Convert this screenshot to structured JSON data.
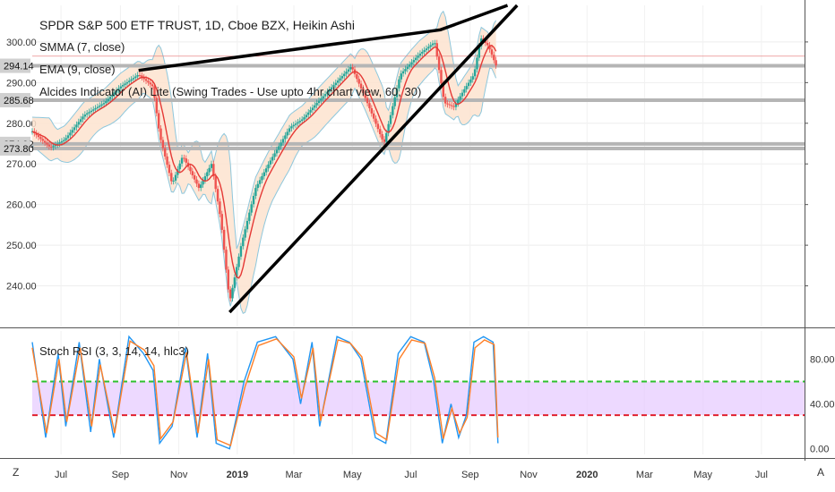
{
  "header": {
    "title": "SPDR S&P 500 ETF TRUST, 1D, Cboe BZX, Heikin Ashi",
    "indicators": [
      "SMMA (7, close)",
      "EMA (9, close)",
      "Alcides Indicator (AI) Lite (Swing Trades - Use upto 4hr chart view, 60, 30)"
    ]
  },
  "lower_pane": {
    "title": "Stoch RSI (3, 3, 14, 14, hlc3)"
  },
  "bottom_bar": {
    "left_button": "Z",
    "right_button": "A"
  },
  "colors": {
    "up_candle": "#26a69a",
    "down_candle": "#ef5350",
    "smma": "#e53935",
    "band_fill": "#fde3cf",
    "band_line": "#8ec7dc",
    "trendline": "#000000",
    "level_line": "#b5b5b5",
    "k_line": "#2196f3",
    "d_line": "#ff7f27",
    "rsi_band": "#e5c9ff",
    "overbought": "#2ec12e",
    "oversold": "#e0202e"
  },
  "chart_data": [
    {
      "type": "candlestick",
      "title": "SPDR S&P 500 ETF TRUST, 1D, Cboe BZX, Heikin Ashi",
      "y_ticks": [
        240,
        250,
        260,
        270,
        280,
        290,
        300
      ],
      "y_tick_labels": [
        "240.00",
        "250.00",
        "260.00",
        "270.00",
        "280.00",
        "290.00",
        "300.00"
      ],
      "ylim": [
        230,
        309
      ],
      "x_tick_labels": [
        "Jul",
        "Sep",
        "Nov",
        "2019",
        "Mar",
        "May",
        "Jul",
        "Sep",
        "Nov",
        "2020",
        "Mar",
        "May",
        "Jul"
      ],
      "xlim": [
        "2018-06-01",
        "2020-08-15"
      ],
      "price_levels": [
        {
          "label": "294.14",
          "value": 294.14
        },
        {
          "label": "285.68",
          "value": 285.68
        },
        {
          "label": "274.92",
          "value": 274.92
        },
        {
          "label": "273.80",
          "value": 273.8
        }
      ],
      "trendlines": [
        {
          "points": [
            [
              "2018-09-20",
              293
            ],
            [
              "2019-08-01",
              303
            ],
            [
              "2019-10-10",
              309
            ]
          ]
        },
        {
          "points": [
            [
              "2018-12-24",
              233.5
            ],
            [
              "2019-10-20",
              309
            ]
          ]
        }
      ],
      "close_series": {
        "x": [
          "2018-06-01",
          "2018-06-20",
          "2018-07-05",
          "2018-07-25",
          "2018-08-15",
          "2018-09-01",
          "2018-09-20",
          "2018-10-05",
          "2018-10-12",
          "2018-10-25",
          "2018-11-05",
          "2018-11-22",
          "2018-12-05",
          "2018-12-15",
          "2018-12-24",
          "2019-01-05",
          "2019-01-20",
          "2019-02-05",
          "2019-02-25",
          "2019-03-10",
          "2019-03-25",
          "2019-04-10",
          "2019-04-30",
          "2019-05-15",
          "2019-06-03",
          "2019-06-20",
          "2019-07-10",
          "2019-07-26",
          "2019-08-05",
          "2019-08-15",
          "2019-08-25",
          "2019-09-05",
          "2019-09-12",
          "2019-09-20",
          "2019-09-30"
        ],
        "y": [
          278,
          274,
          276,
          282,
          285,
          289,
          292,
          289,
          277,
          265,
          272,
          264,
          270,
          256,
          236,
          250,
          264,
          271,
          279,
          281,
          285,
          289,
          294,
          286,
          275,
          292,
          297,
          300,
          285,
          284,
          288,
          292,
          301,
          299,
          293
        ]
      }
    },
    {
      "type": "line",
      "title": "Stoch RSI (3, 3, 14, 14, hlc3)",
      "y_ticks": [
        0,
        40,
        80
      ],
      "y_tick_labels": [
        "0.00",
        "40.00",
        "80.00"
      ],
      "ylim": [
        -5,
        105
      ],
      "bands": [
        {
          "name": "upper",
          "value": 60
        },
        {
          "name": "lower",
          "value": 30
        }
      ],
      "series": [
        {
          "x": [
            "2018-06-01",
            "2018-06-15",
            "2018-06-28",
            "2018-07-06",
            "2018-07-20",
            "2018-08-01",
            "2018-08-10",
            "2018-08-25",
            "2018-09-10",
            "2018-09-25",
            "2018-10-05",
            "2018-10-12",
            "2018-10-25",
            "2018-11-08",
            "2018-11-20",
            "2018-12-01",
            "2018-12-10",
            "2018-12-24",
            "2019-01-08",
            "2019-01-22",
            "2019-02-10",
            "2019-02-28",
            "2019-03-08",
            "2019-03-20",
            "2019-03-28",
            "2019-04-15",
            "2019-04-28",
            "2019-05-10",
            "2019-05-25",
            "2019-06-05",
            "2019-06-18",
            "2019-07-01",
            "2019-07-15",
            "2019-07-25",
            "2019-08-03",
            "2019-08-12",
            "2019-08-20",
            "2019-08-28",
            "2019-09-05",
            "2019-09-15",
            "2019-09-25",
            "2019-09-30"
          ],
          "y": [
            95,
            10,
            85,
            20,
            95,
            15,
            80,
            10,
            100,
            85,
            70,
            5,
            20,
            90,
            10,
            85,
            5,
            0,
            60,
            95,
            100,
            80,
            40,
            95,
            20,
            100,
            95,
            80,
            10,
            5,
            85,
            100,
            95,
            60,
            5,
            40,
            10,
            30,
            95,
            100,
            95,
            5
          ]
        },
        {
          "x": [
            "2018-06-01",
            "2018-06-16",
            "2018-06-29",
            "2018-07-07",
            "2018-07-21",
            "2018-08-02",
            "2018-08-11",
            "2018-08-26",
            "2018-09-11",
            "2018-09-26",
            "2018-10-06",
            "2018-10-13",
            "2018-10-26",
            "2018-11-09",
            "2018-11-21",
            "2018-12-02",
            "2018-12-11",
            "2018-12-25",
            "2019-01-09",
            "2019-01-23",
            "2019-02-11",
            "2019-03-01",
            "2019-03-09",
            "2019-03-21",
            "2019-03-29",
            "2019-04-16",
            "2019-04-29",
            "2019-05-11",
            "2019-05-26",
            "2019-06-06",
            "2019-06-19",
            "2019-07-02",
            "2019-07-16",
            "2019-07-26",
            "2019-08-04",
            "2019-08-13",
            "2019-08-21",
            "2019-08-29",
            "2019-09-06",
            "2019-09-16",
            "2019-09-26",
            "2019-09-30"
          ],
          "y": [
            90,
            14,
            80,
            24,
            90,
            20,
            75,
            14,
            96,
            88,
            74,
            9,
            24,
            86,
            14,
            80,
            8,
            3,
            55,
            92,
            98,
            82,
            45,
            90,
            25,
            97,
            94,
            82,
            14,
            8,
            80,
            97,
            94,
            63,
            9,
            36,
            14,
            28,
            90,
            97,
            93,
            10
          ]
        }
      ]
    }
  ]
}
